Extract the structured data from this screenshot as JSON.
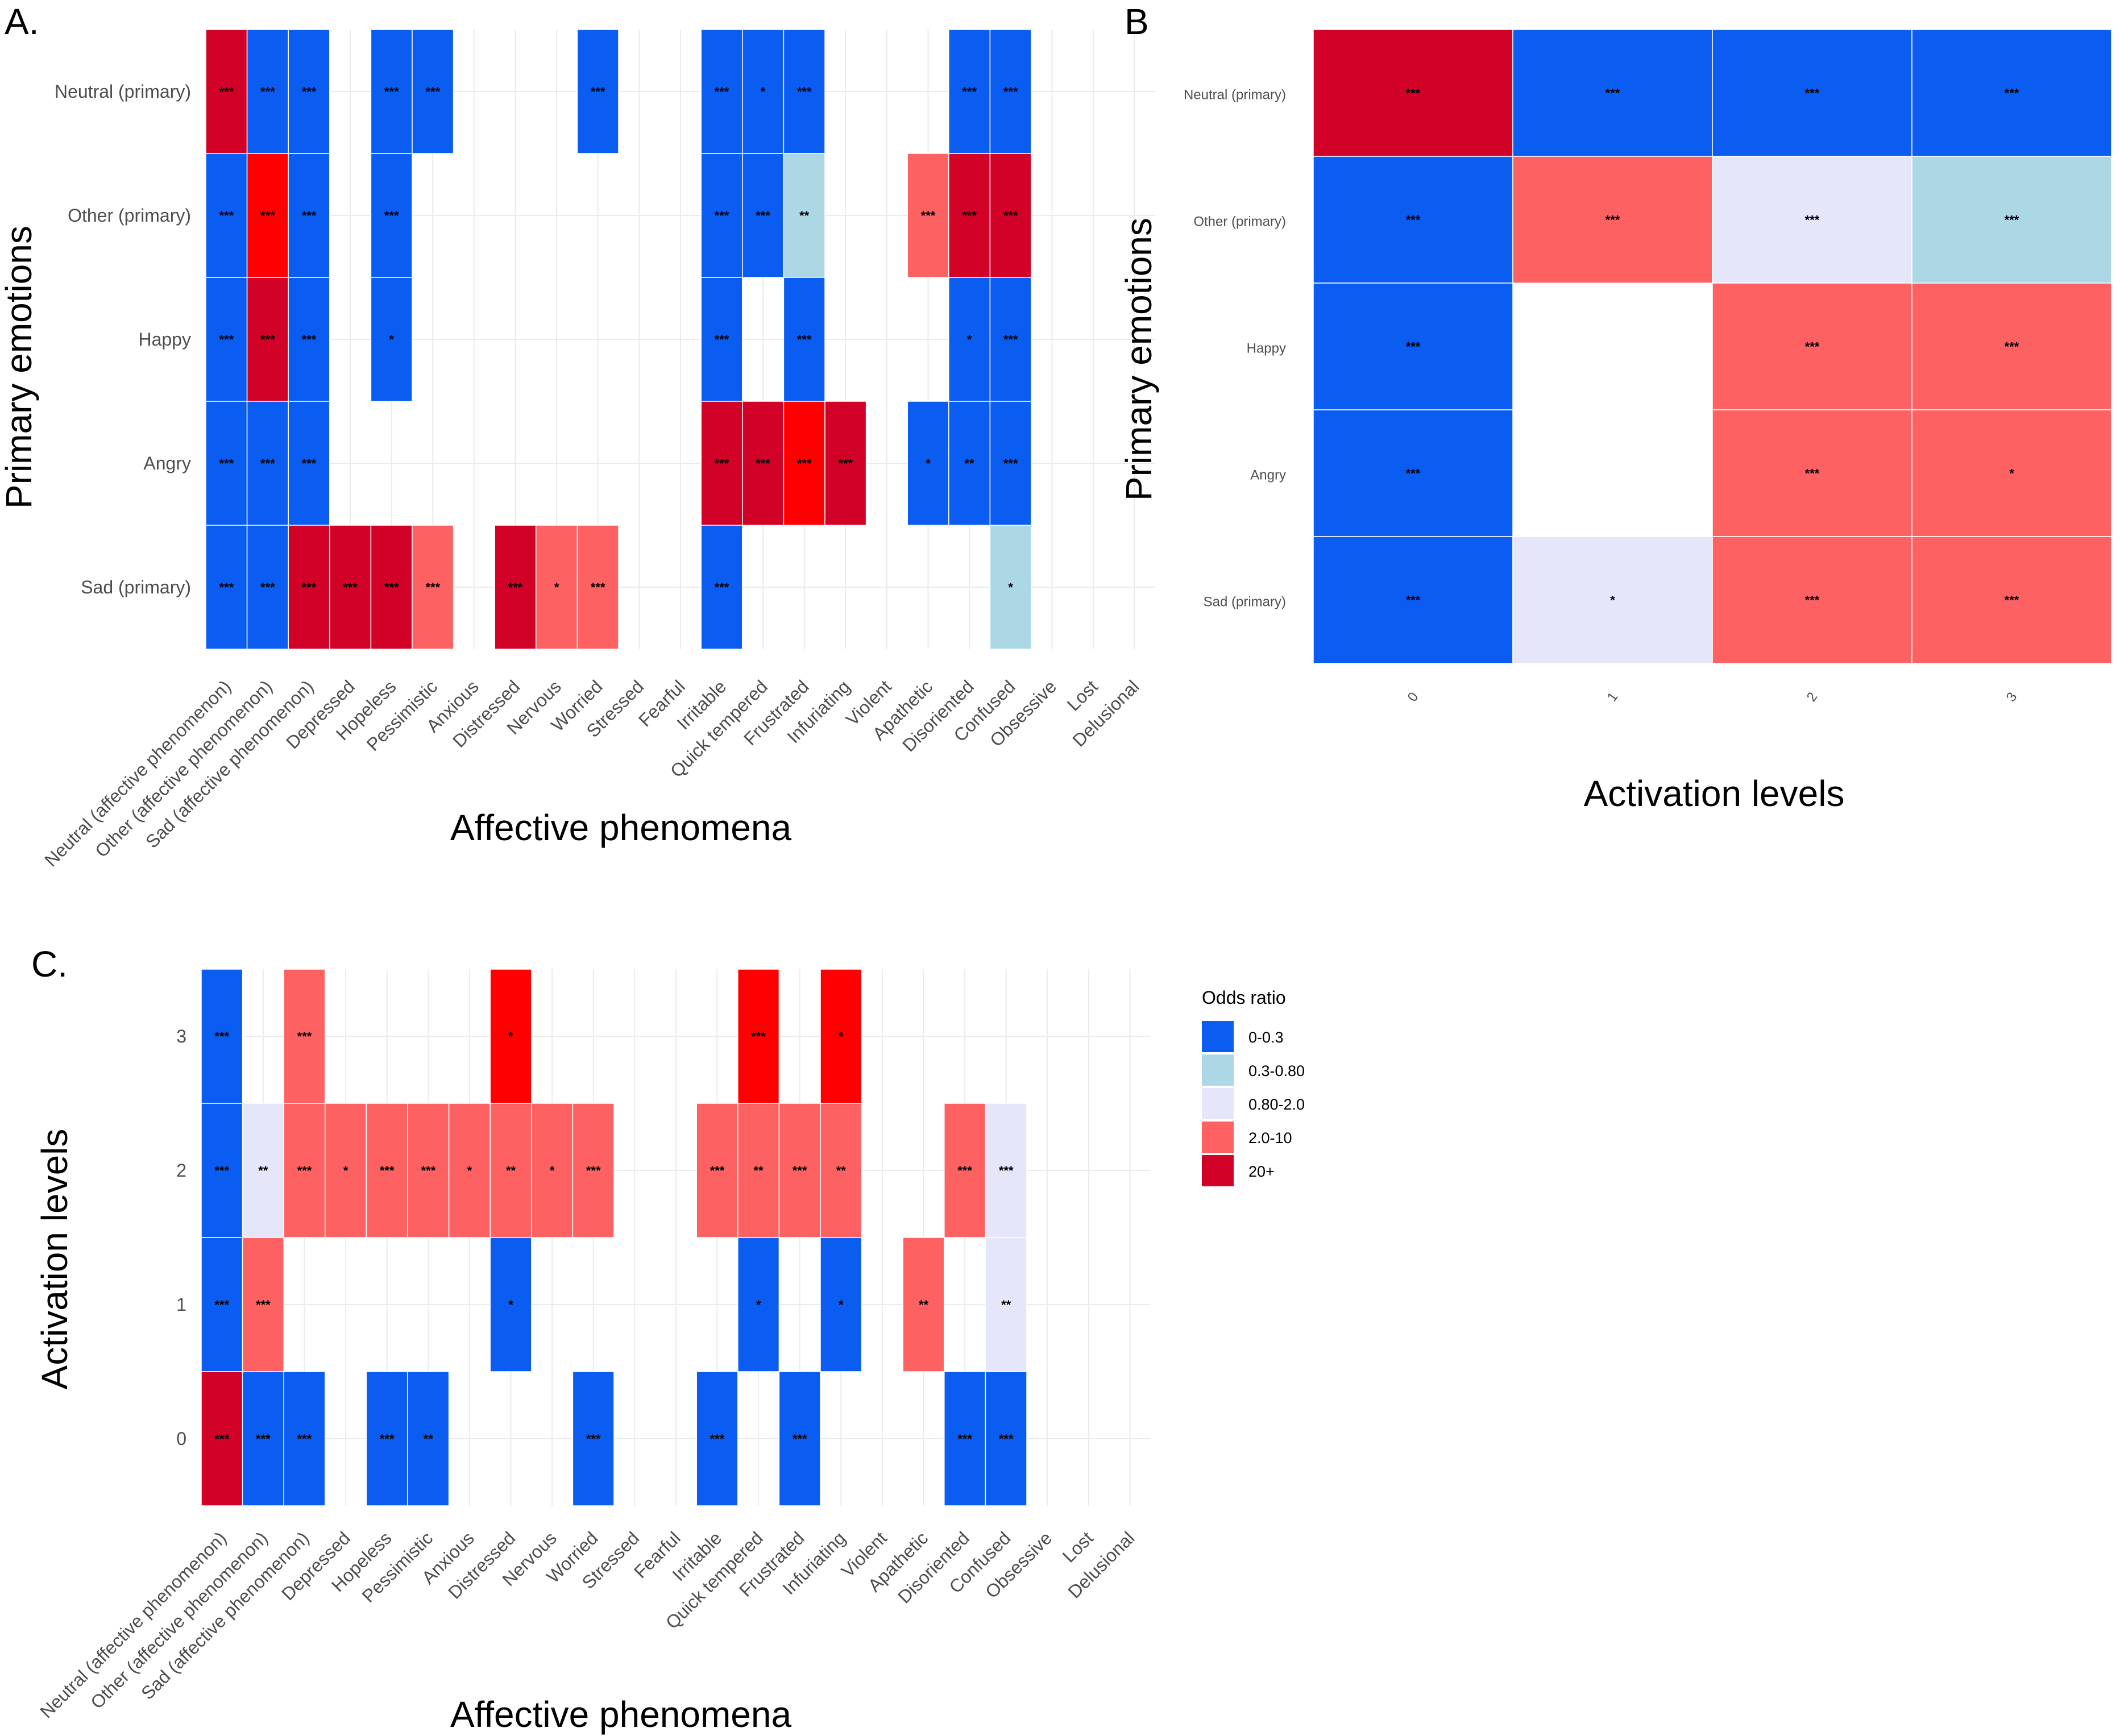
{
  "colors": {
    "0-0.3": "#0b5cf0",
    "0.3-0.80": "#acd8e6",
    "0.80-2.0": "#e6e6fa",
    "2.0-10": "#fe6161",
    "10-20": "#ff0000",
    "20+": "#d10128"
  },
  "legend": {
    "title": "Odds ratio",
    "items": [
      {
        "key": "0-0.3",
        "label": "0-0.3"
      },
      {
        "key": "0.3-0.80",
        "label": "0.3-0.80"
      },
      {
        "key": "0.80-2.0",
        "label": "0.80-2.0"
      },
      {
        "key": "2.0-10",
        "label": "2.0-10"
      },
      {
        "key": "20+",
        "label": "20+"
      }
    ]
  },
  "chart_data": [
    {
      "panel": "A.",
      "type": "heatmap",
      "xlabel": "Affective phenomena",
      "ylabel": "Primary emotions",
      "x_categories": [
        "Neutral (affective phenomenon)",
        "Other (affective phenomenon)",
        "Sad (affective phenomenon)",
        "Depressed",
        "Hopeless",
        "Pessimistic",
        "Anxious",
        "Distressed",
        "Nervous",
        "Worried",
        "Stressed",
        "Fearful",
        "Irritable",
        "Quick tempered",
        "Frustrated",
        "Infuriating",
        "Violent",
        "Apathetic",
        "Disoriented",
        "Confused",
        "Obsessive",
        "Lost",
        "Delusional"
      ],
      "y_categories": [
        "Neutral (primary)",
        "Other (primary)",
        "Happy",
        "Angry",
        "Sad (primary)"
      ],
      "cells": [
        {
          "x": 0,
          "y": 0,
          "odds": "20+",
          "sig": "***"
        },
        {
          "x": 1,
          "y": 0,
          "odds": "0-0.3",
          "sig": "***"
        },
        {
          "x": 2,
          "y": 0,
          "odds": "0-0.3",
          "sig": "***"
        },
        {
          "x": 4,
          "y": 0,
          "odds": "0-0.3",
          "sig": "***"
        },
        {
          "x": 5,
          "y": 0,
          "odds": "0-0.3",
          "sig": "***"
        },
        {
          "x": 9,
          "y": 0,
          "odds": "0-0.3",
          "sig": "***"
        },
        {
          "x": 12,
          "y": 0,
          "odds": "0-0.3",
          "sig": "***"
        },
        {
          "x": 13,
          "y": 0,
          "odds": "0-0.3",
          "sig": "*"
        },
        {
          "x": 14,
          "y": 0,
          "odds": "0-0.3",
          "sig": "***"
        },
        {
          "x": 18,
          "y": 0,
          "odds": "0-0.3",
          "sig": "***"
        },
        {
          "x": 19,
          "y": 0,
          "odds": "0-0.3",
          "sig": "***"
        },
        {
          "x": 0,
          "y": 1,
          "odds": "0-0.3",
          "sig": "***"
        },
        {
          "x": 1,
          "y": 1,
          "odds": "10-20",
          "sig": "***"
        },
        {
          "x": 2,
          "y": 1,
          "odds": "0-0.3",
          "sig": "***"
        },
        {
          "x": 4,
          "y": 1,
          "odds": "0-0.3",
          "sig": "***"
        },
        {
          "x": 12,
          "y": 1,
          "odds": "0-0.3",
          "sig": "***"
        },
        {
          "x": 13,
          "y": 1,
          "odds": "0-0.3",
          "sig": "***"
        },
        {
          "x": 14,
          "y": 1,
          "odds": "0.3-0.80",
          "sig": "**"
        },
        {
          "x": 17,
          "y": 1,
          "odds": "2.0-10",
          "sig": "***"
        },
        {
          "x": 18,
          "y": 1,
          "odds": "20+",
          "sig": "***"
        },
        {
          "x": 19,
          "y": 1,
          "odds": "20+",
          "sig": "***"
        },
        {
          "x": 0,
          "y": 2,
          "odds": "0-0.3",
          "sig": "***"
        },
        {
          "x": 1,
          "y": 2,
          "odds": "20+",
          "sig": "***"
        },
        {
          "x": 2,
          "y": 2,
          "odds": "0-0.3",
          "sig": "***"
        },
        {
          "x": 4,
          "y": 2,
          "odds": "0-0.3",
          "sig": "*"
        },
        {
          "x": 12,
          "y": 2,
          "odds": "0-0.3",
          "sig": "***"
        },
        {
          "x": 14,
          "y": 2,
          "odds": "0-0.3",
          "sig": "***"
        },
        {
          "x": 18,
          "y": 2,
          "odds": "0-0.3",
          "sig": "*"
        },
        {
          "x": 19,
          "y": 2,
          "odds": "0-0.3",
          "sig": "***"
        },
        {
          "x": 0,
          "y": 3,
          "odds": "0-0.3",
          "sig": "***"
        },
        {
          "x": 1,
          "y": 3,
          "odds": "0-0.3",
          "sig": "***"
        },
        {
          "x": 2,
          "y": 3,
          "odds": "0-0.3",
          "sig": "***"
        },
        {
          "x": 12,
          "y": 3,
          "odds": "20+",
          "sig": "***"
        },
        {
          "x": 13,
          "y": 3,
          "odds": "20+",
          "sig": "***"
        },
        {
          "x": 14,
          "y": 3,
          "odds": "10-20",
          "sig": "***"
        },
        {
          "x": 15,
          "y": 3,
          "odds": "20+",
          "sig": "***"
        },
        {
          "x": 17,
          "y": 3,
          "odds": "0-0.3",
          "sig": "*"
        },
        {
          "x": 18,
          "y": 3,
          "odds": "0-0.3",
          "sig": "**"
        },
        {
          "x": 19,
          "y": 3,
          "odds": "0-0.3",
          "sig": "***"
        },
        {
          "x": 0,
          "y": 4,
          "odds": "0-0.3",
          "sig": "***"
        },
        {
          "x": 1,
          "y": 4,
          "odds": "0-0.3",
          "sig": "***"
        },
        {
          "x": 2,
          "y": 4,
          "odds": "20+",
          "sig": "***"
        },
        {
          "x": 3,
          "y": 4,
          "odds": "20+",
          "sig": "***"
        },
        {
          "x": 4,
          "y": 4,
          "odds": "20+",
          "sig": "***"
        },
        {
          "x": 5,
          "y": 4,
          "odds": "2.0-10",
          "sig": "***"
        },
        {
          "x": 7,
          "y": 4,
          "odds": "20+",
          "sig": "***"
        },
        {
          "x": 8,
          "y": 4,
          "odds": "2.0-10",
          "sig": "*"
        },
        {
          "x": 9,
          "y": 4,
          "odds": "2.0-10",
          "sig": "***"
        },
        {
          "x": 12,
          "y": 4,
          "odds": "0-0.3",
          "sig": "***"
        },
        {
          "x": 19,
          "y": 4,
          "odds": "0.3-0.80",
          "sig": "*"
        }
      ]
    },
    {
      "panel": "B",
      "type": "heatmap",
      "xlabel": "Activation levels",
      "ylabel": "Primary emotions",
      "x_categories": [
        "0",
        "1",
        "2",
        "3"
      ],
      "y_categories": [
        "Neutral (primary)",
        "Other (primary)",
        "Happy",
        "Angry",
        "Sad (primary)"
      ],
      "cells": [
        {
          "x": 0,
          "y": 0,
          "odds": "20+",
          "sig": "***"
        },
        {
          "x": 1,
          "y": 0,
          "odds": "0-0.3",
          "sig": "***"
        },
        {
          "x": 2,
          "y": 0,
          "odds": "0-0.3",
          "sig": "***"
        },
        {
          "x": 3,
          "y": 0,
          "odds": "0-0.3",
          "sig": "***"
        },
        {
          "x": 0,
          "y": 1,
          "odds": "0-0.3",
          "sig": "***"
        },
        {
          "x": 1,
          "y": 1,
          "odds": "2.0-10",
          "sig": "***"
        },
        {
          "x": 2,
          "y": 1,
          "odds": "0.80-2.0",
          "sig": "***"
        },
        {
          "x": 3,
          "y": 1,
          "odds": "0.3-0.80",
          "sig": "***"
        },
        {
          "x": 0,
          "y": 2,
          "odds": "0-0.3",
          "sig": "***"
        },
        {
          "x": 2,
          "y": 2,
          "odds": "2.0-10",
          "sig": "***"
        },
        {
          "x": 3,
          "y": 2,
          "odds": "2.0-10",
          "sig": "***"
        },
        {
          "x": 0,
          "y": 3,
          "odds": "0-0.3",
          "sig": "***"
        },
        {
          "x": 2,
          "y": 3,
          "odds": "2.0-10",
          "sig": "***"
        },
        {
          "x": 3,
          "y": 3,
          "odds": "2.0-10",
          "sig": "*"
        },
        {
          "x": 0,
          "y": 4,
          "odds": "0-0.3",
          "sig": "***"
        },
        {
          "x": 1,
          "y": 4,
          "odds": "0.80-2.0",
          "sig": "*"
        },
        {
          "x": 2,
          "y": 4,
          "odds": "2.0-10",
          "sig": "***"
        },
        {
          "x": 3,
          "y": 4,
          "odds": "2.0-10",
          "sig": "***"
        }
      ]
    },
    {
      "panel": "C.",
      "type": "heatmap",
      "xlabel": "Affective phenomena",
      "ylabel": "Activation levels",
      "x_categories": [
        "Neutral (affective phenomenon)",
        "Other (affective phenomenon)",
        "Sad (affective phenomenon)",
        "Depressed",
        "Hopeless",
        "Pessimistic",
        "Anxious",
        "Distressed",
        "Nervous",
        "Worried",
        "Stressed",
        "Fearful",
        "Irritable",
        "Quick tempered",
        "Frustrated",
        "Infuriating",
        "Violent",
        "Apathetic",
        "Disoriented",
        "Confused",
        "Obsessive",
        "Lost",
        "Delusional"
      ],
      "y_categories": [
        "3",
        "2",
        "1",
        "0"
      ],
      "cells": [
        {
          "x": 0,
          "y": 0,
          "odds": "0-0.3",
          "sig": "***"
        },
        {
          "x": 2,
          "y": 0,
          "odds": "2.0-10",
          "sig": "***"
        },
        {
          "x": 7,
          "y": 0,
          "odds": "10-20",
          "sig": "*"
        },
        {
          "x": 13,
          "y": 0,
          "odds": "10-20",
          "sig": "***"
        },
        {
          "x": 15,
          "y": 0,
          "odds": "10-20",
          "sig": "*"
        },
        {
          "x": 0,
          "y": 1,
          "odds": "0-0.3",
          "sig": "***"
        },
        {
          "x": 1,
          "y": 1,
          "odds": "0.80-2.0",
          "sig": "**"
        },
        {
          "x": 2,
          "y": 1,
          "odds": "2.0-10",
          "sig": "***"
        },
        {
          "x": 3,
          "y": 1,
          "odds": "2.0-10",
          "sig": "*"
        },
        {
          "x": 4,
          "y": 1,
          "odds": "2.0-10",
          "sig": "***"
        },
        {
          "x": 5,
          "y": 1,
          "odds": "2.0-10",
          "sig": "***"
        },
        {
          "x": 6,
          "y": 1,
          "odds": "2.0-10",
          "sig": "*"
        },
        {
          "x": 7,
          "y": 1,
          "odds": "2.0-10",
          "sig": "**"
        },
        {
          "x": 8,
          "y": 1,
          "odds": "2.0-10",
          "sig": "*"
        },
        {
          "x": 9,
          "y": 1,
          "odds": "2.0-10",
          "sig": "***"
        },
        {
          "x": 12,
          "y": 1,
          "odds": "2.0-10",
          "sig": "***"
        },
        {
          "x": 13,
          "y": 1,
          "odds": "2.0-10",
          "sig": "**"
        },
        {
          "x": 14,
          "y": 1,
          "odds": "2.0-10",
          "sig": "***"
        },
        {
          "x": 15,
          "y": 1,
          "odds": "2.0-10",
          "sig": "**"
        },
        {
          "x": 18,
          "y": 1,
          "odds": "2.0-10",
          "sig": "***"
        },
        {
          "x": 19,
          "y": 1,
          "odds": "0.80-2.0",
          "sig": "***"
        },
        {
          "x": 0,
          "y": 2,
          "odds": "0-0.3",
          "sig": "***"
        },
        {
          "x": 1,
          "y": 2,
          "odds": "2.0-10",
          "sig": "***"
        },
        {
          "x": 7,
          "y": 2,
          "odds": "0-0.3",
          "sig": "*"
        },
        {
          "x": 13,
          "y": 2,
          "odds": "0-0.3",
          "sig": "*"
        },
        {
          "x": 15,
          "y": 2,
          "odds": "0-0.3",
          "sig": "*"
        },
        {
          "x": 17,
          "y": 2,
          "odds": "2.0-10",
          "sig": "**"
        },
        {
          "x": 19,
          "y": 2,
          "odds": "0.80-2.0",
          "sig": "**"
        },
        {
          "x": 0,
          "y": 3,
          "odds": "20+",
          "sig": "***"
        },
        {
          "x": 1,
          "y": 3,
          "odds": "0-0.3",
          "sig": "***"
        },
        {
          "x": 2,
          "y": 3,
          "odds": "0-0.3",
          "sig": "***"
        },
        {
          "x": 4,
          "y": 3,
          "odds": "0-0.3",
          "sig": "***"
        },
        {
          "x": 5,
          "y": 3,
          "odds": "0-0.3",
          "sig": "**"
        },
        {
          "x": 9,
          "y": 3,
          "odds": "0-0.3",
          "sig": "***"
        },
        {
          "x": 12,
          "y": 3,
          "odds": "0-0.3",
          "sig": "***"
        },
        {
          "x": 14,
          "y": 3,
          "odds": "0-0.3",
          "sig": "***"
        },
        {
          "x": 18,
          "y": 3,
          "odds": "0-0.3",
          "sig": "***"
        },
        {
          "x": 19,
          "y": 3,
          "odds": "0-0.3",
          "sig": "***"
        }
      ]
    }
  ]
}
